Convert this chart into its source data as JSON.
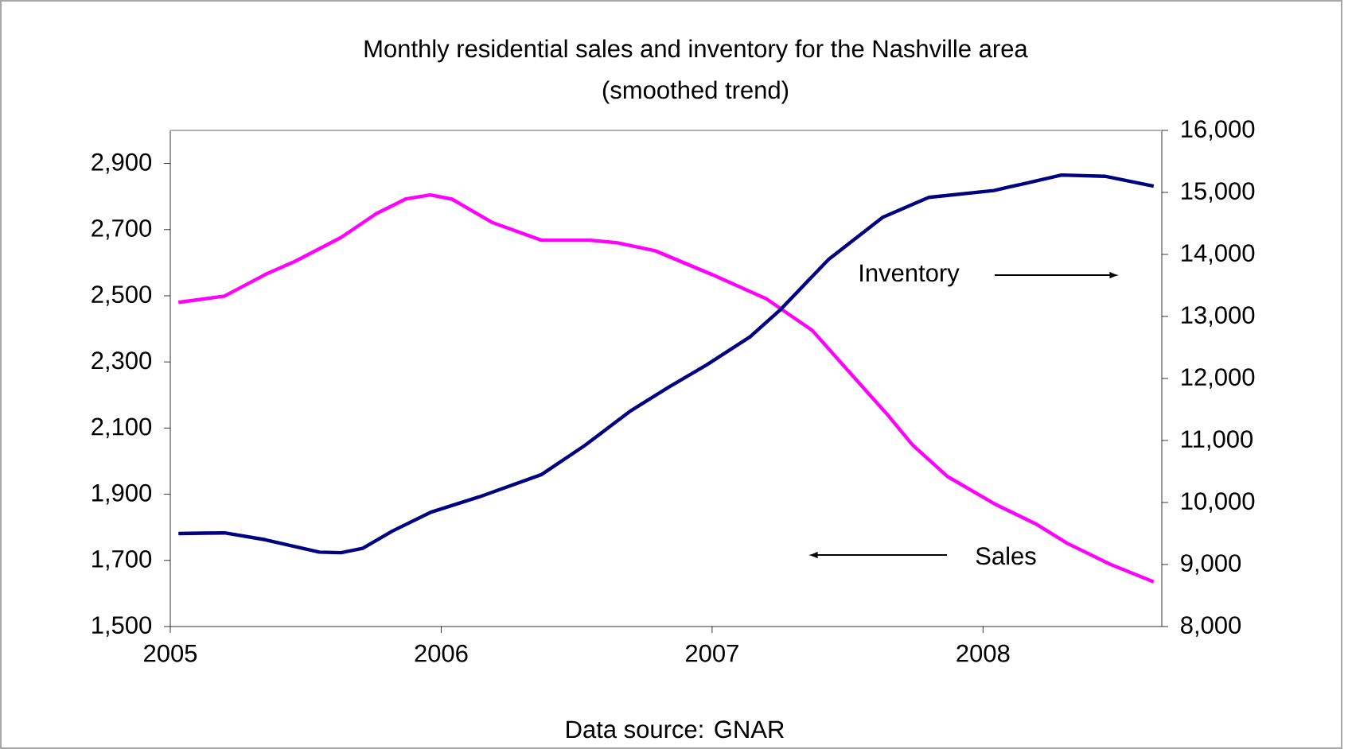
{
  "chart_data": {
    "type": "line",
    "title": "Monthly residential sales and inventory for the Nashville area",
    "subtitle": "(smoothed trend)",
    "annotations": [
      "Data source: GNAR"
    ],
    "xlim": [
      2005,
      2008.66
    ],
    "xticks": [
      2005,
      2006,
      2007,
      2008
    ],
    "ylim": [
      1500,
      3000
    ],
    "yticks": [
      {
        "value": 1500,
        "label": "1,500"
      },
      {
        "value": 1700,
        "label": "1,700"
      },
      {
        "value": 1900,
        "label": "1,900"
      },
      {
        "value": 2100,
        "label": "2,100"
      },
      {
        "value": 2300,
        "label": "2,300"
      },
      {
        "value": 2500,
        "label": "2,500"
      },
      {
        "value": 2700,
        "label": "2,700"
      },
      {
        "value": 2900,
        "label": "2,900"
      }
    ],
    "y2lim": [
      8000,
      16000
    ],
    "y2ticks": [
      {
        "value": 8000,
        "label": "8,000"
      },
      {
        "value": 9000,
        "label": "9,000"
      },
      {
        "value": 10000,
        "label": "10,000"
      },
      {
        "value": 11000,
        "label": "11,000"
      },
      {
        "value": 12000,
        "label": "12,000"
      },
      {
        "value": 13000,
        "label": "13,000"
      },
      {
        "value": 14000,
        "label": "14,000"
      },
      {
        "value": 15000,
        "label": "15,000"
      },
      {
        "value": 16000,
        "label": "16,000"
      }
    ],
    "marker": "none",
    "grid": false,
    "legend": false,
    "series": [
      {
        "name": "Sales",
        "color": "#ff00ff",
        "x": [
          2005.03,
          2005.2,
          2005.35,
          2005.46,
          2005.63,
          2005.76,
          2005.87,
          2005.96,
          2006.04,
          2006.19,
          2006.37,
          2006.55,
          2006.65,
          2006.79,
          2007.0,
          2007.2,
          2007.37,
          2007.51,
          2007.65,
          2007.74,
          2007.87,
          2008.04,
          2008.2,
          2008.31,
          2008.47,
          2008.63
        ],
        "values": [
          2480,
          2499,
          2564,
          2604,
          2676,
          2748,
          2793,
          2805,
          2792,
          2721,
          2668,
          2668,
          2660,
          2636,
          2564,
          2491,
          2395,
          2266,
          2138,
          2049,
          1953,
          1872,
          1808,
          1752,
          1688,
          1635
        ]
      },
      {
        "name": "Inventory",
        "color": "#000080",
        "axis": "y2",
        "x": [
          2005.03,
          2005.2,
          2005.35,
          2005.55,
          2005.63,
          2005.71,
          2005.82,
          2005.96,
          2006.14,
          2006.37,
          2006.53,
          2006.7,
          2006.84,
          2006.98,
          2007.14,
          2007.25,
          2007.43,
          2007.63,
          2007.8,
          2008.04,
          2008.16,
          2008.29,
          2008.45,
          2008.63
        ],
        "values": [
          9500,
          9510,
          9400,
          9200,
          9190,
          9260,
          9540,
          9840,
          10090,
          10450,
          10920,
          11480,
          11860,
          12220,
          12670,
          13100,
          13920,
          14600,
          14920,
          15030,
          15150,
          15280,
          15260,
          15100
        ]
      }
    ]
  }
}
